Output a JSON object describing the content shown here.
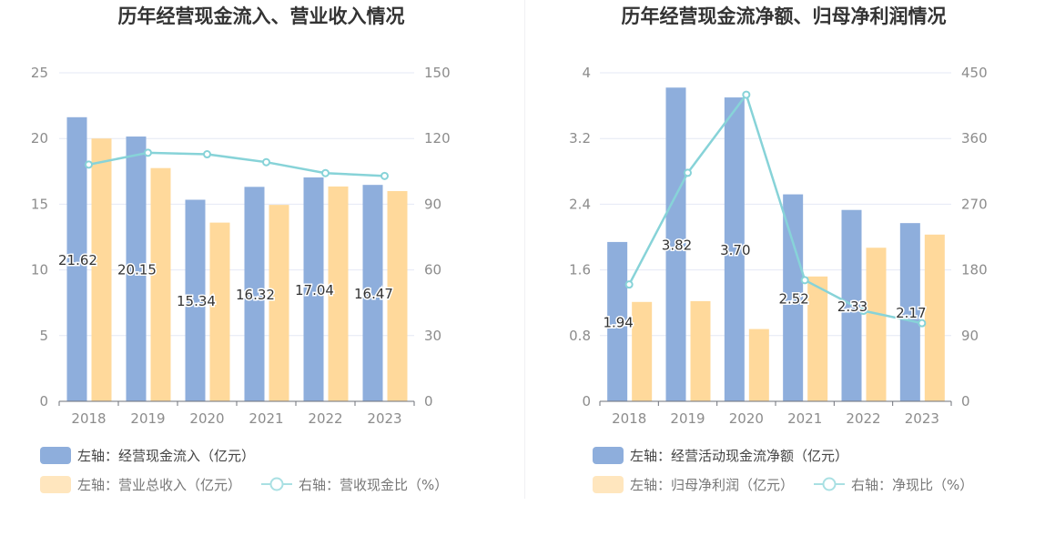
{
  "chart_data": [
    {
      "type": "bar",
      "title": "历年经营现金流入、营业收入情况",
      "categories": [
        "2018",
        "2019",
        "2020",
        "2021",
        "2022",
        "2023"
      ],
      "left_axis": {
        "ylim": [
          0,
          25
        ],
        "ticks": [
          "0",
          "5",
          "10",
          "15",
          "20",
          "25"
        ]
      },
      "right_axis": {
        "ylim": [
          0,
          150
        ],
        "ticks": [
          "0",
          "30",
          "60",
          "90",
          "120",
          "150"
        ]
      },
      "series": [
        {
          "name": "左轴：经营现金流入（亿元）",
          "type": "bar",
          "axis": "left",
          "color": "#8eaedc",
          "values": [
            21.62,
            20.15,
            15.34,
            16.32,
            17.04,
            16.47
          ],
          "labels": [
            "21.62",
            "20.15",
            "15.34",
            "16.32",
            "17.04",
            "16.47"
          ]
        },
        {
          "name": "左轴：营业总收入（亿元）",
          "type": "bar",
          "axis": "left",
          "color": "#ffd99b",
          "values": [
            20.0,
            17.75,
            13.6,
            14.95,
            16.35,
            16.0
          ]
        },
        {
          "name": "右轴：营收现金比（%）",
          "type": "line",
          "axis": "right",
          "color": "#87d3d8",
          "values": [
            108.1,
            113.5,
            112.8,
            109.2,
            104.2,
            102.9
          ]
        }
      ],
      "grid": true,
      "legend_position": "bottom-left"
    },
    {
      "type": "bar",
      "title": "历年经营现金流净额、归母净利润情况",
      "categories": [
        "2018",
        "2019",
        "2020",
        "2021",
        "2022",
        "2023"
      ],
      "left_axis": {
        "ylim": [
          0,
          4
        ],
        "ticks": [
          "0",
          "0.8",
          "1.6",
          "2.4",
          "3.2",
          "4"
        ]
      },
      "right_axis": {
        "ylim": [
          0,
          450
        ],
        "ticks": [
          "0",
          "90",
          "180",
          "270",
          "360",
          "450"
        ]
      },
      "series": [
        {
          "name": "左轴：经营活动现金流净额（亿元）",
          "type": "bar",
          "axis": "left",
          "color": "#8eaedc",
          "values": [
            1.94,
            3.82,
            3.7,
            2.52,
            2.33,
            2.17
          ],
          "labels": [
            "1.94",
            "3.82",
            "3.70",
            "2.52",
            "2.33",
            "2.17"
          ]
        },
        {
          "name": "左轴：归母净利润（亿元）",
          "type": "bar",
          "axis": "left",
          "color": "#ffd99b",
          "values": [
            1.21,
            1.22,
            0.88,
            1.52,
            1.87,
            2.03
          ]
        },
        {
          "name": "右轴：净现比（%）",
          "type": "line",
          "axis": "right",
          "color": "#87d3d8",
          "values": [
            160,
            313,
            420,
            166,
            124,
            107
          ]
        }
      ],
      "grid": true,
      "legend_position": "bottom-left"
    }
  ],
  "colors": {
    "axis_text": "#8c8c8c",
    "grid": "#e4e8f4",
    "axis_line": "#6e7079",
    "title": "#333333",
    "legend_text": "#555555"
  }
}
